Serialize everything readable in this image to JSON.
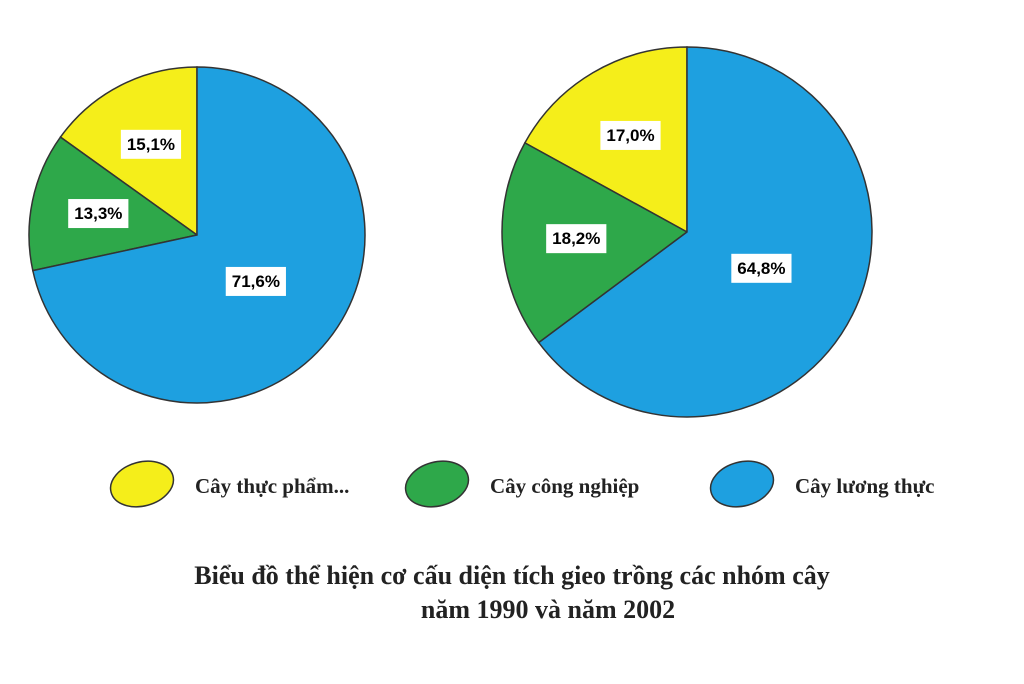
{
  "chart_data": {
    "type": "pie",
    "title": [
      "Biểu đồ thể hiện cơ cấu diện tích gieo trồng các nhóm cây",
      "năm 1990 và năm 2002"
    ],
    "categories": [
      "Cây thực phẩm...",
      "Cây công nghiệp",
      "Cây lương thực"
    ],
    "colors": [
      "#f5ee1a",
      "#2ea84a",
      "#1ea0e0"
    ],
    "series": [
      {
        "values": [
          15.1,
          13.3,
          71.6
        ],
        "value_labels": [
          "15,1%",
          "13,3%",
          "71,6%"
        ]
      },
      {
        "values": [
          17.0,
          18.2,
          64.8
        ],
        "value_labels": [
          "17,0%",
          "18,2%",
          "64,8%"
        ]
      }
    ]
  }
}
